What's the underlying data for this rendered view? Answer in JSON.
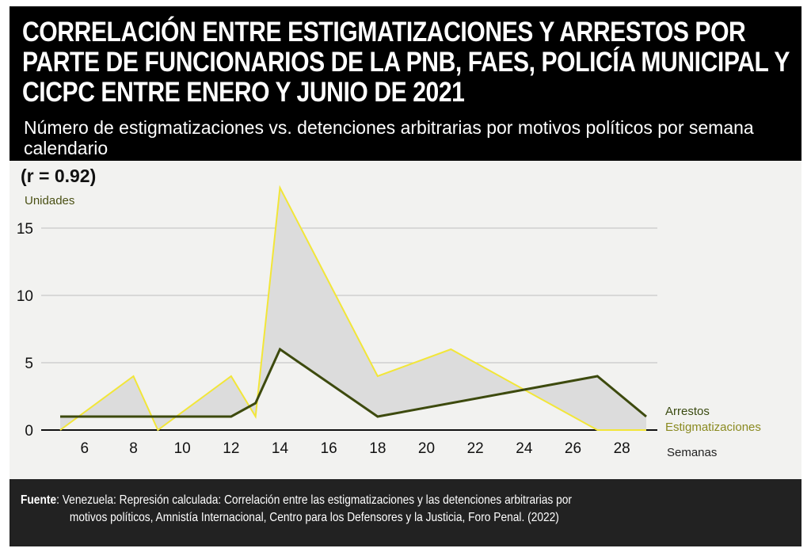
{
  "header": {
    "title": "CORRELACIÓN ENTRE ESTIGMATIZACIONES Y ARRESTOS POR PARTE DE FUNCIONARIOS DE LA PNB, FAES, POLICÍA MUNICIPAL Y CICPC ENTRE ENERO Y JUNIO DE 2021",
    "subtitle": "Número de estigmatizaciones vs. detenciones arbitrarias por motivos políticos por semana calendario"
  },
  "footer": {
    "source_label": "Fuente",
    "source_line1": ": Venezuela: Represión calculada: Correlación entre las estigmatizaciones y las detenciones arbitrarias por",
    "source_line2": "motivos políticos, Amnistía Internacional, Centro para los Defensores y la Justicia, Foro Penal. (2022)"
  },
  "colors": {
    "header_bg": "#000000",
    "chart_bg": "#f2f2f0",
    "footer_bg": "#222222",
    "arrestos": "#3d4a0e",
    "estigmatizaciones": "#f2e638",
    "fill_between": "#dcdcdc"
  },
  "chart_data": {
    "type": "line",
    "annotation": "(r = 0.92)",
    "ylabel": "Unidades",
    "xlabel": "Semanas",
    "ylim": [
      0,
      18
    ],
    "xlim": [
      5,
      29
    ],
    "yticks": [
      0,
      5,
      10,
      15
    ],
    "xticks": [
      6,
      8,
      10,
      12,
      14,
      16,
      18,
      20,
      22,
      24,
      26,
      28
    ],
    "grid": true,
    "legend": "right",
    "series": [
      {
        "name": "Arrestos",
        "color": "#3d4a0e",
        "x": [
          5,
          9,
          12,
          13,
          14,
          18,
          24,
          27,
          29
        ],
        "y": [
          1,
          1,
          1,
          2,
          6,
          1,
          3,
          4,
          1
        ]
      },
      {
        "name": "Estigmatizaciones",
        "color": "#f2e638",
        "x": [
          5,
          8,
          9,
          12,
          13,
          14,
          18,
          21,
          27,
          29
        ],
        "y": [
          0,
          4,
          0,
          4,
          1,
          18,
          4,
          6,
          0,
          0
        ]
      }
    ]
  }
}
